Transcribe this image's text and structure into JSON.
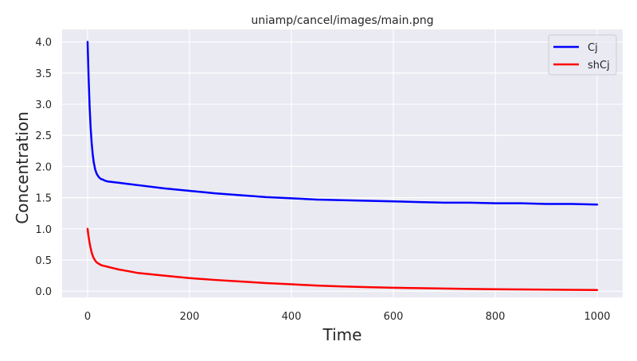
{
  "chart_data": {
    "type": "line",
    "title": "uniamp/cancel/images/main.png",
    "xlabel": "Time",
    "ylabel": "Concentration",
    "xlim": [
      -50,
      1050
    ],
    "ylim": [
      -0.1,
      4.2
    ],
    "x_ticks": [
      0,
      200,
      400,
      600,
      800,
      1000
    ],
    "x_tick_labels": [
      "0",
      "200",
      "400",
      "600",
      "800",
      "1000"
    ],
    "y_ticks": [
      0.0,
      0.5,
      1.0,
      1.5,
      2.0,
      2.5,
      3.0,
      3.5,
      4.0
    ],
    "y_tick_labels": [
      "0.0",
      "0.5",
      "1.0",
      "1.5",
      "2.0",
      "2.5",
      "3.0",
      "3.5",
      "4.0"
    ],
    "grid": true,
    "legend_position": "top-right",
    "series": [
      {
        "name": "Cj",
        "color": "#0000ff",
        "x": [
          0,
          2,
          4,
          6,
          8,
          10,
          12,
          15,
          18,
          22,
          26,
          30,
          35,
          40,
          50,
          60,
          80,
          100,
          150,
          200,
          250,
          300,
          350,
          400,
          450,
          500,
          550,
          600,
          650,
          700,
          750,
          800,
          850,
          900,
          950,
          1000
        ],
        "y": [
          4.0,
          3.42,
          2.96,
          2.62,
          2.38,
          2.2,
          2.07,
          1.95,
          1.88,
          1.83,
          1.8,
          1.79,
          1.77,
          1.76,
          1.75,
          1.74,
          1.72,
          1.7,
          1.65,
          1.61,
          1.57,
          1.54,
          1.51,
          1.49,
          1.47,
          1.46,
          1.45,
          1.44,
          1.43,
          1.42,
          1.42,
          1.41,
          1.41,
          1.4,
          1.4,
          1.39
        ]
      },
      {
        "name": "shCj",
        "color": "#ff0000",
        "x": [
          0,
          2,
          4,
          6,
          8,
          10,
          12,
          15,
          18,
          22,
          26,
          30,
          35,
          40,
          50,
          60,
          80,
          100,
          150,
          200,
          250,
          300,
          350,
          400,
          450,
          500,
          550,
          600,
          650,
          700,
          750,
          800,
          850,
          900,
          950,
          1000
        ],
        "y": [
          1.0,
          0.87,
          0.77,
          0.69,
          0.62,
          0.57,
          0.53,
          0.49,
          0.46,
          0.44,
          0.42,
          0.41,
          0.4,
          0.39,
          0.37,
          0.35,
          0.32,
          0.29,
          0.25,
          0.21,
          0.18,
          0.155,
          0.13,
          0.11,
          0.09,
          0.075,
          0.065,
          0.055,
          0.048,
          0.042,
          0.036,
          0.031,
          0.027,
          0.024,
          0.021,
          0.018
        ]
      }
    ]
  }
}
